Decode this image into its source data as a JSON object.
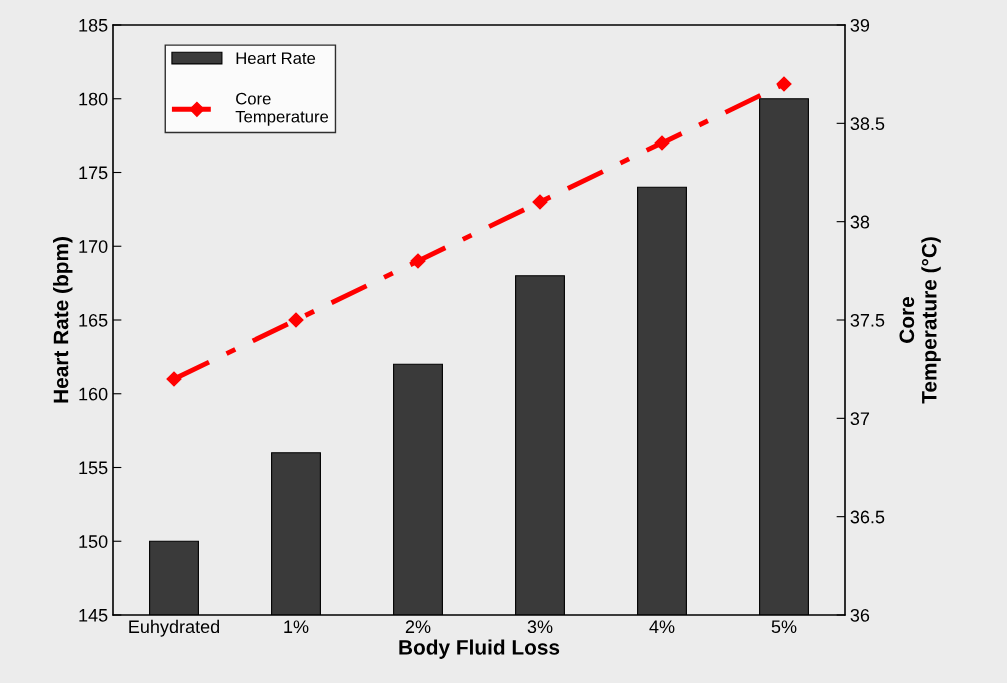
{
  "chart_data": {
    "type": "bar",
    "xlabel": "Body Fluid Loss",
    "ylabel": "Heart Rate (bpm)",
    "y2label": "Core\nTemperature (°C)",
    "categories": [
      "Euhydrated",
      "1%",
      "2%",
      "3%",
      "4%",
      "5%"
    ],
    "series": [
      {
        "name": "Heart Rate",
        "color": "#3a3a3a",
        "values": [
          150,
          156,
          162,
          168,
          174,
          180
        ]
      },
      {
        "name": "Core\nTemperature",
        "type": "line",
        "axis": "y2",
        "color": "#ff0000",
        "marker": "diamond",
        "line_style": "dashed",
        "values": [
          37.2,
          37.5,
          37.8,
          38.1,
          38.4,
          38.7
        ]
      }
    ],
    "ylim": [
      145,
      185
    ],
    "yticks": [
      145,
      150,
      155,
      160,
      165,
      170,
      175,
      180,
      185
    ],
    "y2lim": [
      36,
      39
    ],
    "y2ticks": [
      36,
      36.5,
      37,
      37.5,
      38,
      38.5,
      39
    ],
    "grid": false,
    "legend": "top left"
  }
}
